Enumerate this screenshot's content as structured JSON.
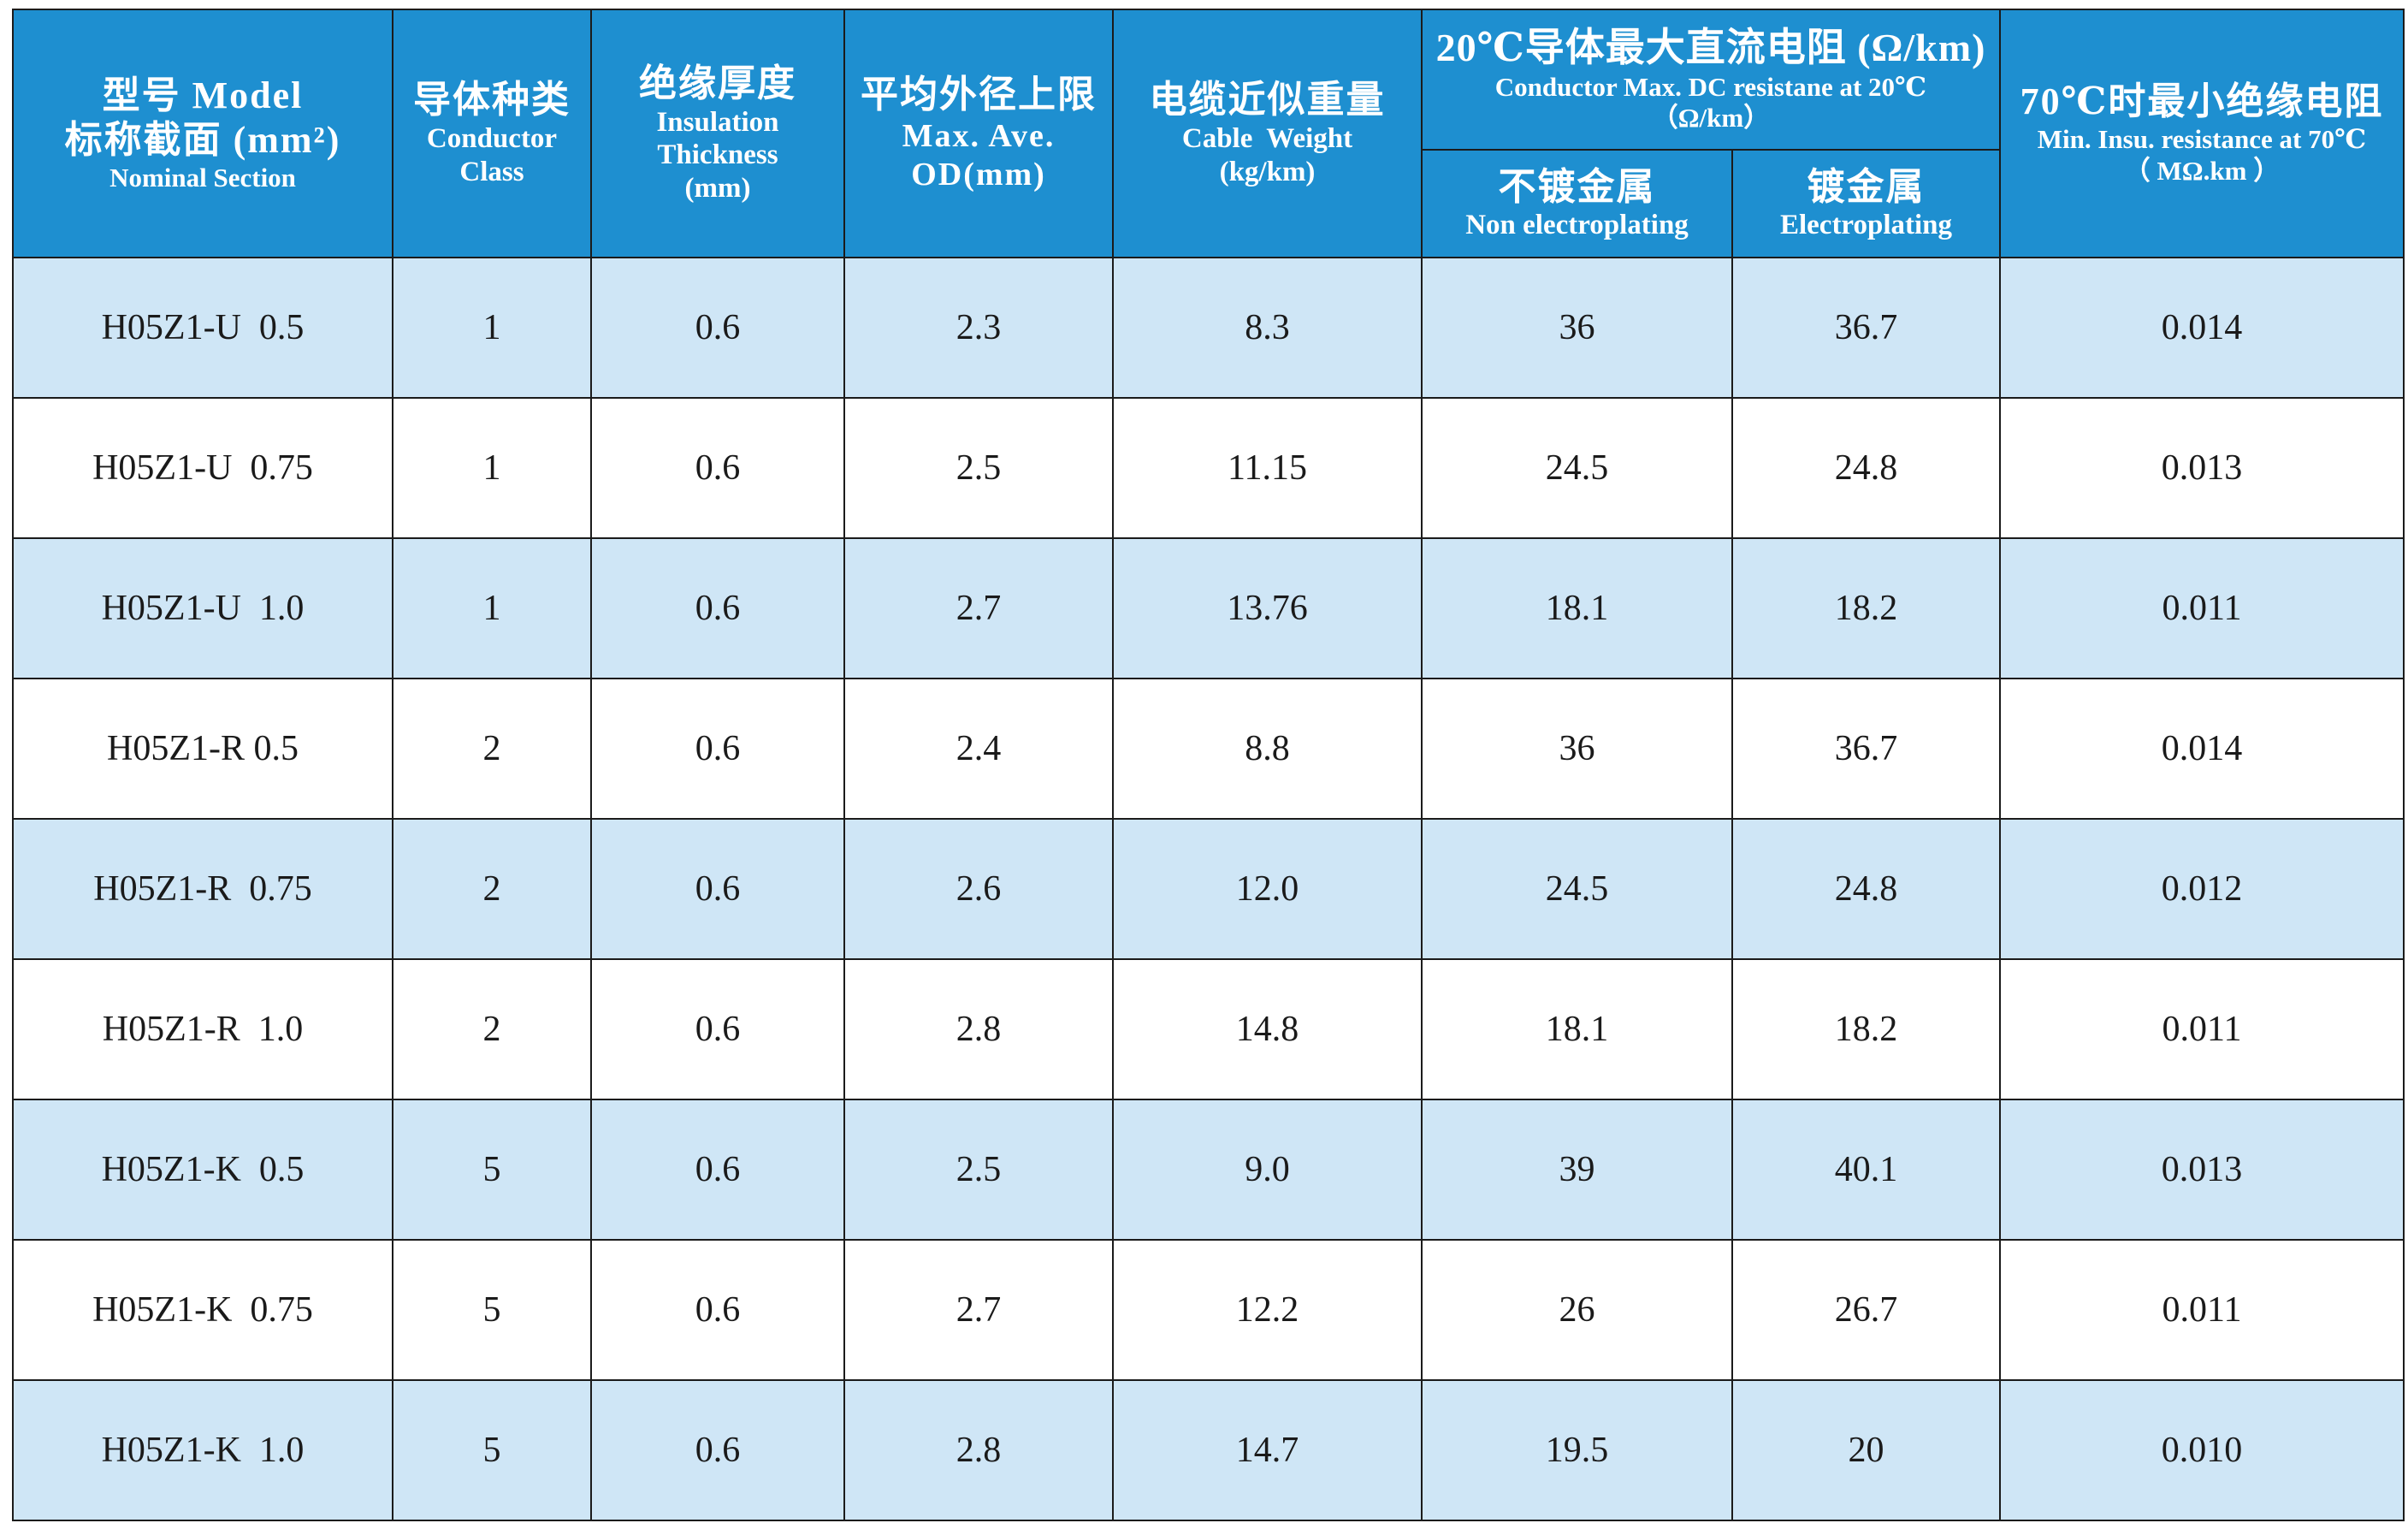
{
  "header": {
    "model": {
      "zh": "型号 Model",
      "zh2": "标称截面 (mm²)",
      "en": "Nominal Section"
    },
    "conductor": {
      "zh": "导体种类",
      "en": "Conductor",
      "en2": "Class"
    },
    "insulation": {
      "zh": "绝缘厚度",
      "en": "Insulation",
      "en2": "Thickness",
      "unit": "(mm)"
    },
    "od": {
      "zh": "平均外径上限",
      "en": "Max. Ave.",
      "en2": "OD(mm)"
    },
    "weight": {
      "zh": "电缆近似重量",
      "en": "Cable  Weight",
      "unit": "(kg/km)"
    },
    "resistance": {
      "zh": "20℃导体最大直流电阻 (Ω/km)",
      "en": "Conductor Max. DC resistane at 20℃",
      "unit": "（Ω/km）"
    },
    "non_plating": {
      "zh": "不镀金属",
      "en": "Non electroplating"
    },
    "plating": {
      "zh": "镀金属",
      "en": "Electroplating"
    },
    "insu_res": {
      "zh": "70℃时最小绝缘电阻",
      "en": "Min. Insu. resistance at 70℃",
      "unit": "（ MΩ.km ）"
    }
  },
  "colors": {
    "header_bg": "#1e8fd0",
    "shade_row": "#cfe6f6",
    "border": "#1b1b1b"
  },
  "rows": [
    {
      "model": "H05Z1-U  0.5",
      "class": "1",
      "insulation": "0.6",
      "od": "2.3",
      "weight": "8.3",
      "non_plating": "36",
      "plating": "36.7",
      "insu_res": "0.014"
    },
    {
      "model": "H05Z1-U  0.75",
      "class": "1",
      "insulation": "0.6",
      "od": "2.5",
      "weight": "11.15",
      "non_plating": "24.5",
      "plating": "24.8",
      "insu_res": "0.013"
    },
    {
      "model": "H05Z1-U  1.0",
      "class": "1",
      "insulation": "0.6",
      "od": "2.7",
      "weight": "13.76",
      "non_plating": "18.1",
      "plating": "18.2",
      "insu_res": "0.011"
    },
    {
      "model": "H05Z1-R 0.5",
      "class": "2",
      "insulation": "0.6",
      "od": "2.4",
      "weight": "8.8",
      "non_plating": "36",
      "plating": "36.7",
      "insu_res": "0.014"
    },
    {
      "model": "H05Z1-R  0.75",
      "class": "2",
      "insulation": "0.6",
      "od": "2.6",
      "weight": "12.0",
      "non_plating": "24.5",
      "plating": "24.8",
      "insu_res": "0.012"
    },
    {
      "model": "H05Z1-R  1.0",
      "class": "2",
      "insulation": "0.6",
      "od": "2.8",
      "weight": "14.8",
      "non_plating": "18.1",
      "plating": "18.2",
      "insu_res": "0.011"
    },
    {
      "model": "H05Z1-K  0.5",
      "class": "5",
      "insulation": "0.6",
      "od": "2.5",
      "weight": "9.0",
      "non_plating": "39",
      "plating": "40.1",
      "insu_res": "0.013"
    },
    {
      "model": "H05Z1-K  0.75",
      "class": "5",
      "insulation": "0.6",
      "od": "2.7",
      "weight": "12.2",
      "non_plating": "26",
      "plating": "26.7",
      "insu_res": "0.011"
    },
    {
      "model": "H05Z1-K  1.0",
      "class": "5",
      "insulation": "0.6",
      "od": "2.8",
      "weight": "14.7",
      "non_plating": "19.5",
      "plating": "20",
      "insu_res": "0.010"
    }
  ]
}
